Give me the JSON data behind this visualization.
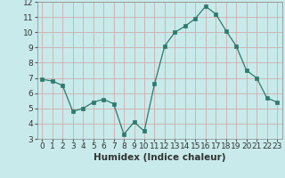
{
  "x": [
    0,
    1,
    2,
    3,
    4,
    5,
    6,
    7,
    8,
    9,
    10,
    11,
    12,
    13,
    14,
    15,
    16,
    17,
    18,
    19,
    20,
    21,
    22,
    23
  ],
  "y": [
    6.9,
    6.8,
    6.5,
    4.8,
    5.0,
    5.4,
    5.6,
    5.3,
    3.3,
    4.1,
    3.5,
    6.6,
    9.1,
    10.0,
    10.4,
    10.9,
    11.7,
    11.2,
    10.1,
    9.1,
    7.5,
    7.0,
    5.7,
    5.4
  ],
  "line_color": "#2d7a6e",
  "marker": "s",
  "marker_size": 2.2,
  "bg_color": "#c8eaea",
  "grid_color": "#b0d4d4",
  "xlabel": "Humidex (Indice chaleur)",
  "xlabel_fontsize": 7.5,
  "tick_fontsize": 6.5,
  "xlim": [
    -0.5,
    23.5
  ],
  "ylim": [
    3,
    12
  ],
  "yticks": [
    3,
    4,
    5,
    6,
    7,
    8,
    9,
    10,
    11,
    12
  ],
  "xticks": [
    0,
    1,
    2,
    3,
    4,
    5,
    6,
    7,
    8,
    9,
    10,
    11,
    12,
    13,
    14,
    15,
    16,
    17,
    18,
    19,
    20,
    21,
    22,
    23
  ]
}
